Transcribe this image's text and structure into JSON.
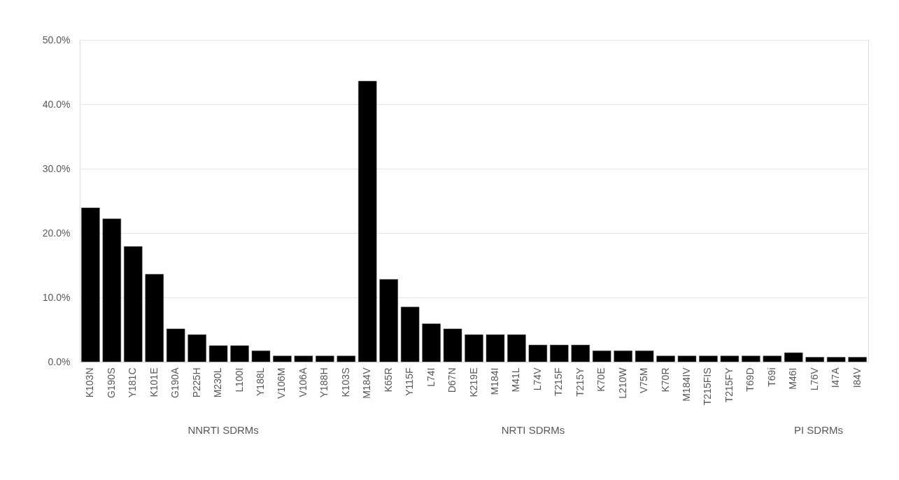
{
  "chart_data": {
    "type": "bar",
    "categories": [
      "K103N",
      "G190S",
      "Y181C",
      "K101E",
      "G190A",
      "P225H",
      "M230L",
      "L100I",
      "Y188L",
      "V106M",
      "V106A",
      "Y188H",
      "K103S",
      "M184V",
      "K65R",
      "Y115F",
      "L74I",
      "D67N",
      "K219E",
      "M184I",
      "M41L",
      "L74V",
      "T215F",
      "T215Y",
      "K70E",
      "L210W",
      "V75M",
      "K70R",
      "M184IV",
      "T215FIS",
      "T215FY",
      "T69D",
      "T69i",
      "M46I",
      "L76V",
      "I47A",
      "I84V"
    ],
    "values": [
      23.9,
      22.2,
      17.9,
      13.6,
      5.1,
      4.2,
      2.5,
      2.5,
      1.7,
      0.9,
      0.9,
      0.9,
      0.9,
      43.6,
      12.8,
      8.5,
      5.9,
      5.1,
      4.2,
      4.2,
      4.2,
      2.6,
      2.6,
      2.6,
      1.7,
      1.7,
      1.7,
      0.9,
      0.9,
      0.9,
      0.9,
      0.9,
      0.9,
      1.4,
      0.7,
      0.7,
      0.7
    ],
    "color": "#000000",
    "ylim": [
      0,
      50
    ],
    "yticks": [
      {
        "value": 0,
        "label": "0.0%"
      },
      {
        "value": 10,
        "label": "10.0%"
      },
      {
        "value": 20,
        "label": "20.0%"
      },
      {
        "value": 30,
        "label": "30.0%"
      },
      {
        "value": 40,
        "label": "40.0%"
      },
      {
        "value": 50,
        "label": "50.0%"
      }
    ],
    "grid": "y",
    "annotations": [
      "NNRTI SDRMs",
      "NRTI SDRMs",
      "PI SDRMs"
    ]
  }
}
